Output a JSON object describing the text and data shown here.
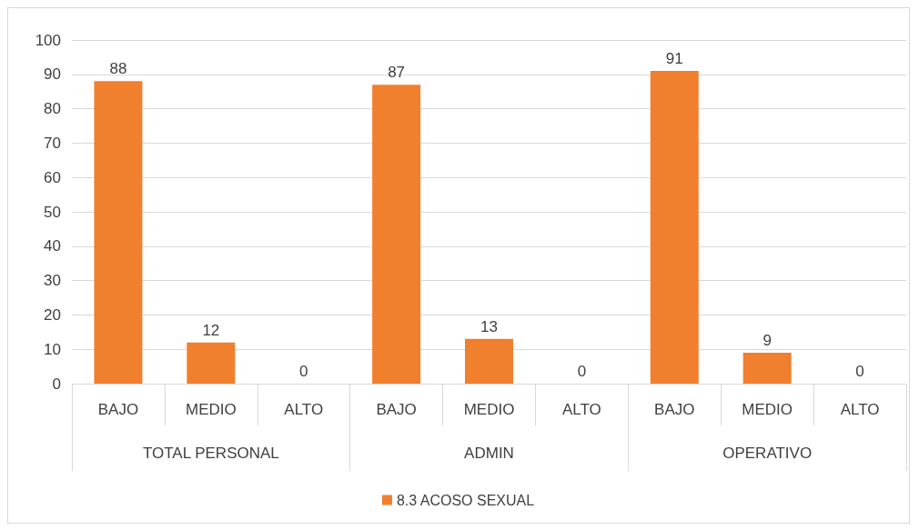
{
  "chart_data": {
    "type": "bar",
    "categories": [
      "BAJO",
      "MEDIO",
      "ALTO",
      "BAJO",
      "MEDIO",
      "ALTO",
      "BAJO",
      "MEDIO",
      "ALTO"
    ],
    "series": [
      {
        "name": "8.3 ACOSO SEXUAL",
        "color": "#f07f2e",
        "values": [
          88,
          12,
          0,
          87,
          13,
          0,
          91,
          9,
          0
        ]
      }
    ],
    "annotations": [
      "TOTAL PERSONAL",
      "ADMIN",
      "OPERATIVO"
    ],
    "ylim": [
      0,
      100
    ],
    "yticks": [
      0,
      10,
      20,
      30,
      40,
      50,
      60,
      70,
      80,
      90,
      100
    ],
    "grid": "y",
    "legend": "bottom",
    "data_labels": true
  }
}
